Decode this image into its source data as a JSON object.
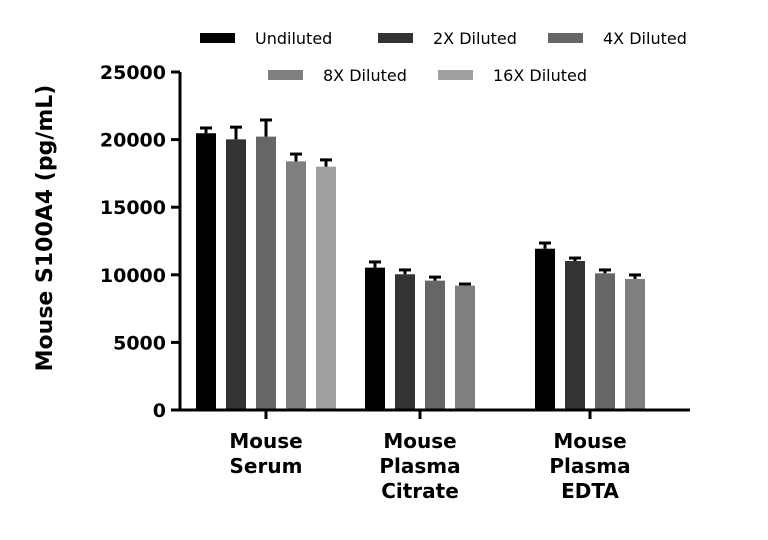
{
  "chart_data": {
    "type": "bar",
    "ylabel": "Mouse S100A4 (pg/mL)",
    "xlabel": "",
    "ylim": [
      0,
      25000
    ],
    "yticks": [
      "0",
      "5000",
      "10000",
      "15000",
      "20000",
      "25000"
    ],
    "grid": false,
    "legend_placement": "top",
    "categories": [
      [
        "Mouse",
        "Serum"
      ],
      [
        "Mouse",
        "Plasma",
        "Citrate"
      ],
      [
        "Mouse",
        "Plasma",
        "EDTA"
      ]
    ],
    "series": [
      {
        "name": "Undiluted",
        "color": "#000000",
        "values": [
          20470,
          10530,
          11930
        ],
        "errors": [
          390,
          420,
          420
        ]
      },
      {
        "name": "2X Diluted",
        "color": "#333333",
        "values": [
          20020,
          10040,
          11020
        ],
        "errors": [
          900,
          320,
          220
        ]
      },
      {
        "name": "4X Diluted",
        "color": "#666666",
        "values": [
          20220,
          9570,
          10110
        ],
        "errors": [
          1230,
          260,
          250
        ]
      },
      {
        "name": "8X Diluted",
        "color": "#808080",
        "values": [
          18390,
          9200,
          9690
        ],
        "errors": [
          540,
          120,
          300
        ]
      },
      {
        "name": "16X Diluted",
        "color": "#a0a0a0",
        "values": [
          18000,
          null,
          null
        ],
        "errors": [
          500,
          null,
          null
        ]
      }
    ]
  }
}
